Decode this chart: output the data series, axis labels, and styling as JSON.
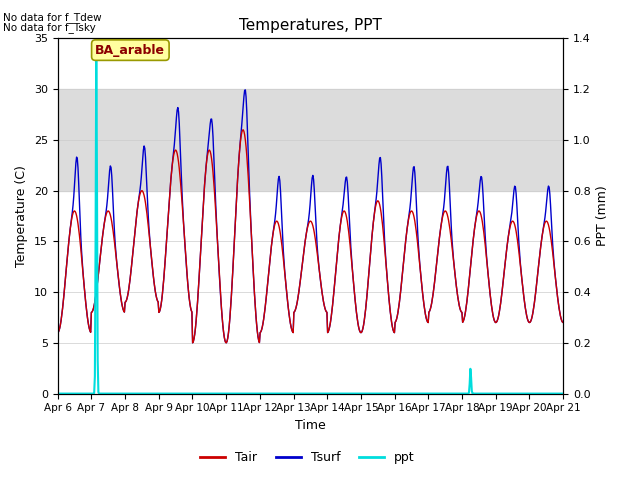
{
  "title": "Temperatures, PPT",
  "xlabel": "Time",
  "ylabel_left": "Temperature (C)",
  "ylabel_right": "PPT (mm)",
  "annotation_text": "BA_arable",
  "no_data_texts": [
    "No data for f_Tdew",
    "No data for f_Tsky"
  ],
  "ylim_left": [
    0,
    35
  ],
  "ylim_right": [
    0,
    1.4
  ],
  "gray_band": [
    20,
    30
  ],
  "gray_band_color": "#dcdcdc",
  "tair_color": "#cc0000",
  "tsurf_color": "#0000cc",
  "ppt_color": "#00dddd",
  "legend_labels": [
    "Tair",
    "Tsurf",
    "ppt"
  ],
  "xtick_labels": [
    "Apr 6",
    "Apr 7",
    "Apr 8",
    "Apr 9",
    "Apr 10",
    "Apr 11",
    "Apr 12",
    "Apr 13",
    "Apr 14",
    "Apr 15",
    "Apr 16",
    "Apr 17",
    "Apr 18",
    "Apr 19",
    "Apr 20",
    "Apr 21"
  ],
  "yticks_left": [
    0,
    5,
    10,
    15,
    20,
    25,
    30,
    35
  ],
  "yticks_right": [
    0.0,
    0.2,
    0.4,
    0.6,
    0.8,
    1.0,
    1.2,
    1.4
  ],
  "tair_daily_min": [
    6,
    8,
    9,
    8,
    5,
    5,
    6,
    8,
    6,
    6,
    7,
    8,
    7,
    7,
    7
  ],
  "tair_daily_max": [
    18,
    18,
    20,
    24,
    24,
    26,
    17,
    17,
    18,
    19,
    18,
    18,
    18,
    17,
    17
  ],
  "tsurf_extra_amp": [
    6,
    5,
    5,
    5,
    4,
    5,
    5,
    5,
    4,
    5,
    5,
    5,
    4,
    4,
    4
  ],
  "ppt_spike1_day": 1.15,
  "ppt_spike1_val": 1.4,
  "ppt_spike2_day": 12.25,
  "ppt_spike2_val": 0.1
}
